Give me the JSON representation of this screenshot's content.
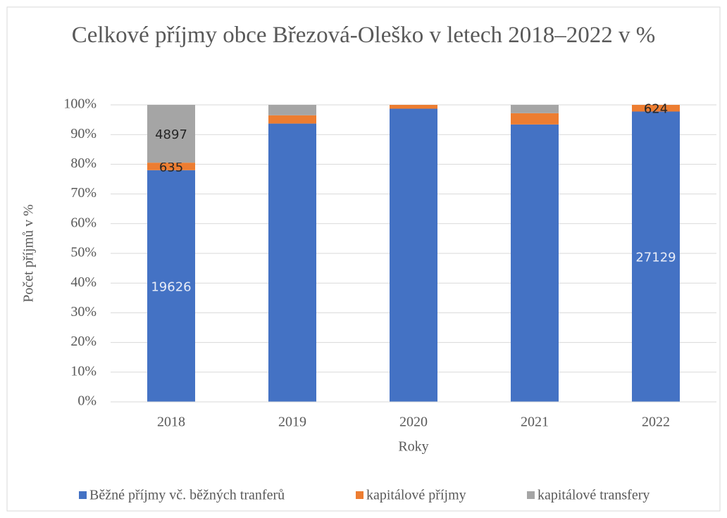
{
  "chart_data": {
    "type": "stacked_percent_bar",
    "title": "Celkové příjmy obce Březová-Oleško v letech 2018–2022 v %",
    "y_label": "Počet příjmů v %",
    "x_label": "Roky",
    "categories": [
      "2018",
      "2019",
      "2020",
      "2021",
      "2022"
    ],
    "series": [
      {
        "name": "Běžné příjmy vč. běžných tranferů",
        "color": "#4472c4",
        "values": [
          19626,
          93.7,
          98.7,
          93.4,
          27129
        ],
        "value_labels": [
          "19626",
          null,
          null,
          null,
          "27129"
        ],
        "label_color": "#e8ecf7"
      },
      {
        "name": "kapitálové příjmy",
        "color": "#ed7d31",
        "values": [
          635,
          2.8,
          1.3,
          3.8,
          624
        ],
        "value_labels": [
          "635",
          null,
          null,
          null,
          "624"
        ],
        "label_color": "#262626"
      },
      {
        "name": "kapitálové transfery",
        "color": "#a5a5a5",
        "values": [
          4897,
          3.5,
          0,
          2.8,
          0
        ],
        "value_labels": [
          "4897",
          null,
          null,
          null,
          null
        ],
        "label_color": "#262626"
      }
    ],
    "ylim": [
      0,
      100
    ],
    "yticks": [
      {
        "value": 0,
        "label": "0%"
      },
      {
        "value": 10,
        "label": "10%"
      },
      {
        "value": 20,
        "label": "20%"
      },
      {
        "value": 30,
        "label": "30%"
      },
      {
        "value": 40,
        "label": "40%"
      },
      {
        "value": 50,
        "label": "50%"
      },
      {
        "value": 60,
        "label": "60%"
      },
      {
        "value": 70,
        "label": "70%"
      },
      {
        "value": 80,
        "label": "80%"
      },
      {
        "value": 90,
        "label": "90%"
      },
      {
        "value": 100,
        "label": "100%"
      }
    ],
    "grid": true,
    "legend": "bottom"
  }
}
